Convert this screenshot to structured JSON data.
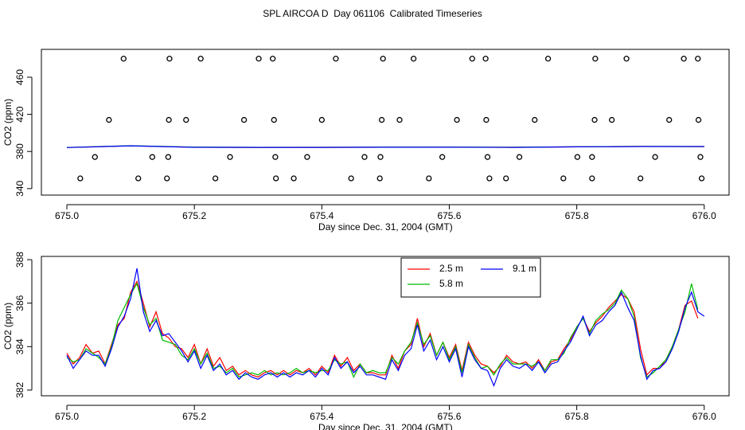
{
  "title": "SPL AIRCOA D  Day 061106  Calibrated Timeseries",
  "chart_data": [
    {
      "type": "scatter",
      "xlabel": "Day since Dec. 31, 2004 (GMT)",
      "ylabel": "CO2 (ppm)",
      "xlim": [
        674.96,
        676.039
      ],
      "ylim": [
        333,
        490
      ],
      "xticks": [
        {
          "value": 675,
          "label": "675.0"
        },
        675.2,
        675.4,
        675.6,
        675.8,
        {
          "value": 676,
          "label": "676.0"
        }
      ],
      "yticks": [
        340,
        380,
        420,
        460
      ],
      "color": "#000000",
      "x": [
        675.089,
        675.161,
        675.21,
        675.301,
        675.323,
        675.422,
        675.496,
        675.544,
        675.636,
        675.657,
        675.755,
        675.829,
        675.878,
        675.968,
        675.99,
        675.066,
        675.16,
        675.187,
        675.278,
        675.325,
        675.4,
        675.494,
        675.522,
        675.612,
        675.658,
        675.734,
        675.828,
        675.855,
        675.945,
        675.991,
        675.044,
        675.134,
        675.159,
        675.256,
        675.327,
        675.377,
        675.467,
        675.492,
        675.589,
        675.66,
        675.71,
        675.801,
        675.824,
        675.923,
        675.994,
        675.021,
        675.112,
        675.157,
        675.233,
        675.328,
        675.356,
        675.446,
        675.491,
        675.568,
        675.663,
        675.689,
        675.779,
        675.824,
        675.9,
        675.996
      ],
      "values": [
        480,
        480,
        480,
        480,
        480,
        480,
        480,
        480,
        480,
        480,
        480,
        480,
        480,
        480,
        480,
        414,
        414,
        414,
        414,
        414,
        414,
        414,
        414,
        414,
        414,
        414,
        414,
        414,
        414,
        414,
        374,
        374,
        374,
        374,
        374,
        374,
        374,
        374,
        374,
        374,
        374,
        374,
        374,
        374,
        374,
        351,
        351,
        351,
        351,
        351,
        351,
        351,
        351,
        351,
        351,
        351,
        351,
        351,
        351,
        351
      ],
      "series": [
        {
          "color": "#ff0000",
          "x": [
            675.0,
            675.1,
            675.2,
            675.3,
            675.4,
            675.5,
            675.6,
            675.7,
            675.8,
            675.9,
            676.0
          ],
          "values": [
            384.3,
            386.0,
            384.6,
            384.4,
            384.5,
            384.6,
            384.7,
            384.5,
            385.0,
            385.5,
            385.2
          ]
        },
        {
          "color": "#00bb00",
          "x": [
            675.0,
            675.1,
            675.2,
            675.3,
            675.4,
            675.5,
            675.6,
            675.7,
            675.8,
            675.9,
            676.0
          ],
          "values": [
            384.3,
            386.2,
            384.7,
            384.5,
            384.5,
            384.7,
            384.7,
            384.6,
            385.1,
            385.4,
            385.3
          ]
        },
        {
          "color": "#0000ff",
          "x": [
            675.0,
            675.1,
            675.2,
            675.3,
            675.4,
            675.5,
            675.6,
            675.7,
            675.8,
            675.9,
            676.0
          ],
          "values": [
            384.2,
            386.1,
            384.5,
            384.4,
            384.4,
            384.6,
            384.6,
            384.4,
            385.0,
            385.3,
            385.3
          ]
        }
      ]
    },
    {
      "type": "line",
      "xlabel": "Day since Dec. 31, 2004 (GMT)",
      "ylabel": "CO2 (ppm)",
      "xlim": [
        674.96,
        676.039
      ],
      "ylim": [
        381.74,
        388.15
      ],
      "xticks": [
        {
          "value": 675,
          "label": "675.0"
        },
        675.2,
        675.4,
        675.6,
        675.8,
        {
          "value": 676,
          "label": "676.0"
        }
      ],
      "yticks": [
        382,
        384,
        386,
        388
      ],
      "legend": "top-center",
      "x": [
        675.0,
        675.01,
        675.02,
        675.03,
        675.04,
        675.05,
        675.06,
        675.07,
        675.08,
        675.09,
        675.1,
        675.11,
        675.12,
        675.13,
        675.14,
        675.15,
        675.16,
        675.17,
        675.18,
        675.19,
        675.2,
        675.21,
        675.22,
        675.23,
        675.24,
        675.25,
        675.26,
        675.27,
        675.28,
        675.29,
        675.3,
        675.31,
        675.32,
        675.33,
        675.34,
        675.35,
        675.36,
        675.37,
        675.38,
        675.39,
        675.4,
        675.41,
        675.42,
        675.43,
        675.44,
        675.45,
        675.46,
        675.47,
        675.48,
        675.49,
        675.5,
        675.51,
        675.52,
        675.53,
        675.54,
        675.55,
        675.56,
        675.57,
        675.58,
        675.59,
        675.6,
        675.61,
        675.62,
        675.63,
        675.64,
        675.65,
        675.66,
        675.67,
        675.68,
        675.69,
        675.7,
        675.71,
        675.72,
        675.73,
        675.74,
        675.75,
        675.76,
        675.77,
        675.78,
        675.79,
        675.8,
        675.81,
        675.82,
        675.83,
        675.84,
        675.85,
        675.86,
        675.87,
        675.88,
        675.89,
        675.9,
        675.91,
        675.92,
        675.93,
        675.94,
        675.95,
        675.96,
        675.97,
        675.98,
        675.99,
        676.0
      ],
      "series": [
        {
          "name": "2.5 m",
          "color": "#ff0000",
          "values": [
            383.7,
            383.2,
            383.5,
            384.1,
            383.7,
            383.8,
            383.2,
            384.1,
            385.0,
            385.3,
            386.5,
            387.0,
            386.0,
            384.9,
            385.6,
            384.6,
            384.4,
            384.0,
            383.9,
            383.5,
            384.1,
            383.2,
            383.9,
            383.1,
            383.5,
            382.9,
            383.1,
            382.7,
            382.9,
            382.7,
            382.6,
            382.8,
            382.9,
            382.7,
            382.9,
            382.7,
            382.9,
            382.8,
            383.0,
            382.7,
            383.1,
            382.8,
            383.6,
            383.1,
            383.5,
            382.9,
            383.2,
            382.8,
            382.8,
            382.7,
            382.7,
            383.6,
            383.0,
            383.8,
            384.1,
            385.3,
            384.0,
            384.6,
            383.6,
            384.2,
            383.5,
            384.1,
            382.9,
            384.2,
            383.6,
            383.2,
            383.1,
            382.8,
            383.1,
            383.6,
            383.3,
            383.2,
            383.3,
            383.0,
            383.4,
            382.9,
            383.3,
            383.4,
            383.9,
            384.3,
            384.9,
            385.3,
            384.7,
            385.1,
            385.4,
            385.8,
            386.1,
            386.4,
            386.2,
            385.6,
            383.9,
            382.7,
            383.0,
            383.0,
            383.4,
            384.0,
            384.8,
            385.9,
            386.1,
            385.3,
            null
          ]
        },
        {
          "name": "5.8 m",
          "color": "#00bb00",
          "values": [
            383.5,
            383.3,
            383.4,
            383.9,
            383.7,
            383.5,
            383.2,
            384.0,
            385.2,
            385.8,
            386.4,
            386.9,
            385.8,
            385.0,
            385.3,
            384.3,
            384.2,
            384.1,
            383.6,
            383.4,
            383.9,
            383.2,
            383.7,
            383.0,
            383.1,
            382.8,
            383.0,
            382.6,
            382.7,
            382.8,
            382.7,
            382.9,
            382.7,
            382.8,
            382.7,
            382.8,
            383.0,
            382.8,
            382.9,
            382.8,
            382.9,
            382.9,
            383.4,
            383.2,
            383.3,
            382.6,
            383.2,
            382.8,
            382.9,
            382.8,
            382.8,
            383.5,
            383.2,
            383.8,
            384.2,
            385.1,
            384.1,
            384.5,
            383.6,
            384.2,
            383.4,
            384.0,
            382.8,
            384.1,
            383.5,
            383.0,
            383.1,
            382.7,
            383.2,
            383.5,
            383.2,
            383.2,
            383.2,
            383.1,
            383.3,
            382.9,
            383.4,
            383.4,
            383.7,
            384.4,
            384.9,
            385.3,
            384.6,
            385.2,
            385.5,
            385.7,
            386.0,
            386.6,
            386.2,
            385.4,
            383.5,
            382.6,
            382.8,
            383.1,
            383.4,
            384.0,
            384.8,
            385.6,
            386.9,
            385.7,
            null
          ]
        },
        {
          "name": "9.1 m",
          "color": "#0000ff",
          "values": [
            383.6,
            383.0,
            383.4,
            383.8,
            383.6,
            383.6,
            383.1,
            383.9,
            384.9,
            385.4,
            386.2,
            387.6,
            385.6,
            384.7,
            385.2,
            384.5,
            384.6,
            384.2,
            383.8,
            383.3,
            383.8,
            383.0,
            383.6,
            382.9,
            383.2,
            382.7,
            382.9,
            382.5,
            382.8,
            382.6,
            382.5,
            382.7,
            382.8,
            382.6,
            382.8,
            382.6,
            382.8,
            382.7,
            382.9,
            382.6,
            383.0,
            382.7,
            383.5,
            383.0,
            383.3,
            382.8,
            383.1,
            382.7,
            382.7,
            382.6,
            382.5,
            383.4,
            382.9,
            383.6,
            383.9,
            385.0,
            383.8,
            384.3,
            383.4,
            384.0,
            383.3,
            383.9,
            382.6,
            384.0,
            383.4,
            383.0,
            382.9,
            382.2,
            383.0,
            383.4,
            383.1,
            383.0,
            383.2,
            382.9,
            383.3,
            382.8,
            383.2,
            383.3,
            383.8,
            384.2,
            384.8,
            385.4,
            384.5,
            385.0,
            385.2,
            385.6,
            385.9,
            386.5,
            385.8,
            385.2,
            383.6,
            382.5,
            382.9,
            383.0,
            383.3,
            383.9,
            384.7,
            385.8,
            386.5,
            385.6,
            385.4
          ]
        }
      ]
    }
  ]
}
